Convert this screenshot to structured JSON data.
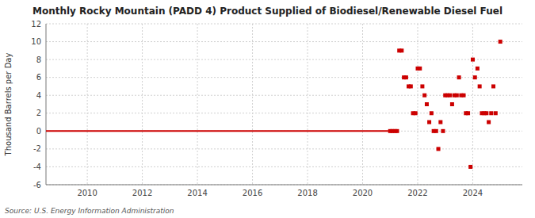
{
  "chart_data": {
    "type": "scatter",
    "title": "Monthly Rocky Mountain (PADD 4) Product Supplied of Biodiesel/Renewable Diesel Fuel",
    "y_label": "Thousand Barrels per Day",
    "source": "Source: U.S. Energy Information Administration",
    "xlim": [
      2008.5,
      2025.8
    ],
    "xticks": [
      2010,
      2012,
      2014,
      2016,
      2018,
      2020,
      2022,
      2024
    ],
    "ylim": [
      -6,
      12
    ],
    "yticks": [
      -6,
      -4,
      -2,
      0,
      2,
      4,
      6,
      8,
      10,
      12
    ],
    "grid": true,
    "series": [
      {
        "type": "line",
        "color": "#cc0000",
        "x": [
          2008.5,
          2021.08
        ],
        "values": [
          0.0,
          0.0
        ]
      },
      {
        "type": "scatter",
        "color": "#cc0000",
        "marker": "square",
        "x": [
          2021.0,
          2021.08,
          2021.17,
          2021.25,
          2021.33,
          2021.42,
          2021.5,
          2021.58,
          2021.67,
          2021.75,
          2021.83,
          2021.92,
          2022.0,
          2022.08,
          2022.17,
          2022.25,
          2022.33,
          2022.42,
          2022.5,
          2022.58,
          2022.67,
          2022.75,
          2022.83,
          2022.92,
          2023.0,
          2023.08,
          2023.17,
          2023.25,
          2023.33,
          2023.42,
          2023.5,
          2023.58,
          2023.67,
          2023.75,
          2023.83,
          2023.92,
          2024.0,
          2024.08,
          2024.17,
          2024.25,
          2024.33,
          2024.42,
          2024.5,
          2024.58,
          2024.67,
          2024.75,
          2024.83,
          2025.0
        ],
        "values": [
          0.0,
          0.0,
          0.0,
          0.0,
          9.0,
          9.0,
          6.0,
          6.0,
          5.0,
          5.0,
          2.0,
          2.0,
          7.0,
          7.0,
          5.0,
          4.0,
          3.0,
          1.0,
          2.0,
          0.0,
          0.0,
          -2.0,
          1.0,
          0.0,
          4.0,
          4.0,
          4.0,
          3.0,
          4.0,
          4.0,
          6.0,
          4.0,
          4.0,
          2.0,
          2.0,
          -4.0,
          8.0,
          6.0,
          7.0,
          5.0,
          2.0,
          2.0,
          2.0,
          1.0,
          2.0,
          5.0,
          2.0,
          10.0
        ]
      }
    ]
  }
}
